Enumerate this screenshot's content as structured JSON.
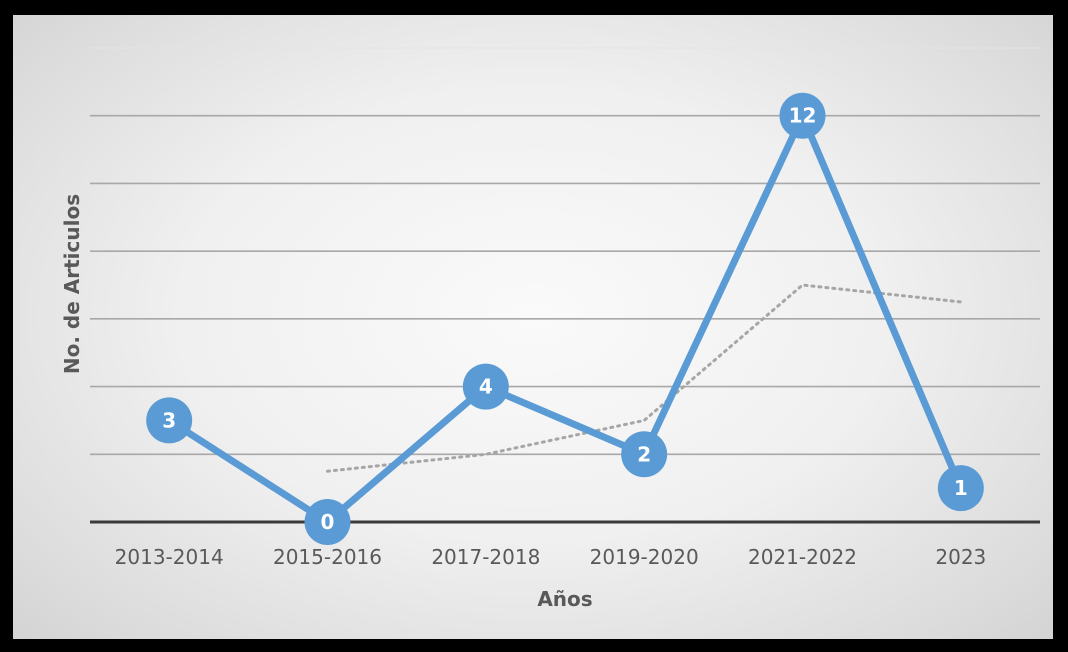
{
  "chart_data": {
    "type": "line",
    "title": "",
    "xlabel": "Años",
    "ylabel": "No. de Articulos",
    "categories": [
      "2013-2014",
      "2015-2016",
      "2017-2018",
      "2019-2020",
      "2021-2022",
      "2023"
    ],
    "series": [
      {
        "values": [
          3,
          0,
          4,
          2,
          12,
          1
        ],
        "color": "#5b9bd5"
      }
    ],
    "trendline": {
      "type": "moving-average",
      "period": 2,
      "values": [
        null,
        1.5,
        2,
        3,
        7,
        6.5
      ],
      "color": "#a6a6a6"
    },
    "ylim": [
      0,
      14
    ],
    "gridlines": true,
    "legend": "none",
    "data_labels": true
  }
}
